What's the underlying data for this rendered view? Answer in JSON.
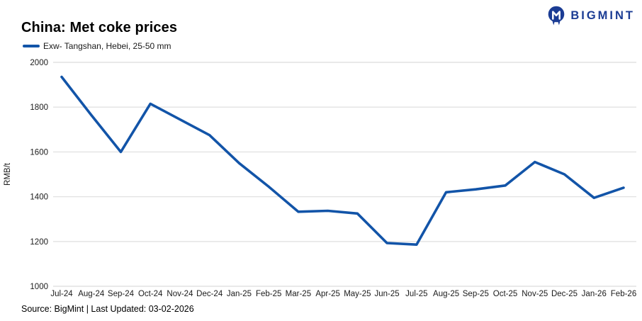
{
  "brand": {
    "name": "BIGMINT",
    "logo_color": "#1B3C94",
    "logo_icon": "bigmint-owl-icon"
  },
  "header": {
    "title": "China: Met coke prices"
  },
  "legend": {
    "label": "Exw- Tangshan, Hebei, 25-50 mm",
    "swatch_color": "#1254A8"
  },
  "footer": {
    "source": "Source: BigMint | Last Updated: 03-02-2026"
  },
  "chart_data": {
    "type": "line",
    "title": "China: Met coke prices",
    "xlabel": "",
    "ylabel": "RMB/t",
    "ylim": [
      1000,
      2000
    ],
    "ytick_step": 200,
    "yticks": [
      1000,
      1200,
      1400,
      1600,
      1800,
      2000
    ],
    "grid": "horizontal",
    "legend_position": "top-left",
    "line_color": "#1254A8",
    "grid_color": "#e2e2e2",
    "categories": [
      "Jul-24",
      "Aug-24",
      "Sep-24",
      "Oct-24",
      "Nov-24",
      "Dec-24",
      "Jan-25",
      "Feb-25",
      "Mar-25",
      "Apr-25",
      "May-25",
      "Jun-25",
      "Jul-25",
      "Aug-25",
      "Sep-25",
      "Oct-25",
      "Nov-25",
      "Dec-25",
      "Jan-26",
      "Feb-26"
    ],
    "series": [
      {
        "name": "Exw- Tangshan, Hebei, 25-50 mm",
        "values": [
          1935,
          1765,
          1600,
          1815,
          1745,
          1675,
          1550,
          1445,
          1333,
          1337,
          1325,
          1193,
          1186,
          1420,
          1433,
          1450,
          1555,
          1500,
          1395,
          1440
        ]
      }
    ]
  }
}
